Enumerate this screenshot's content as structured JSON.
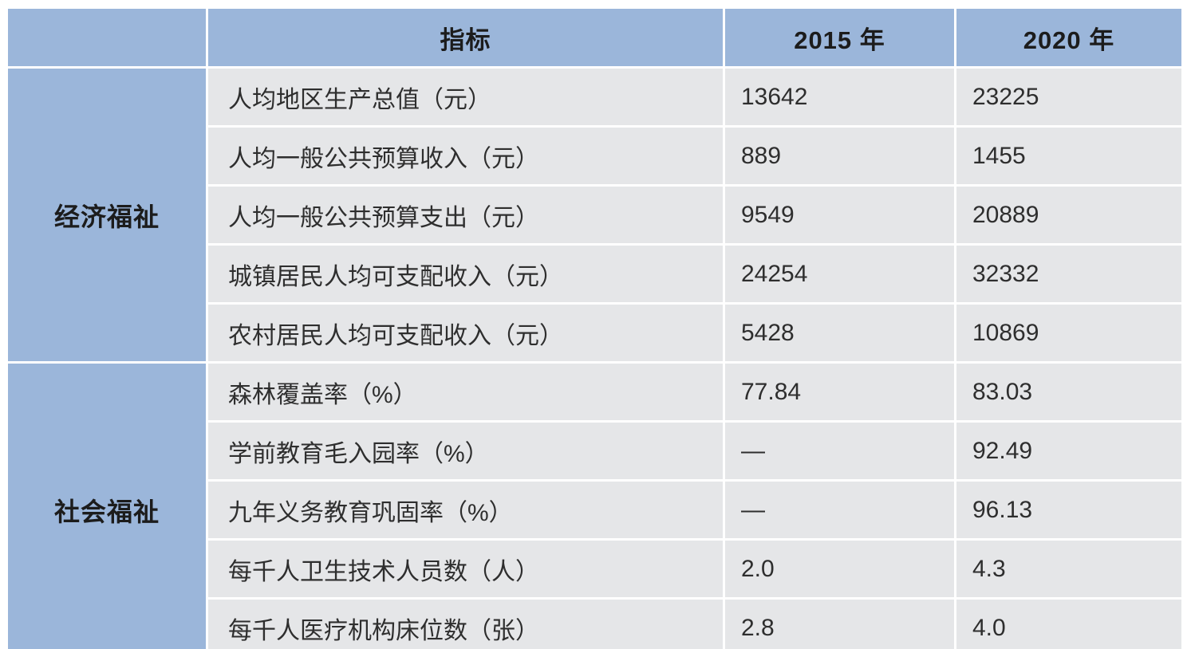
{
  "colors": {
    "header_bg": "#9BB6DA",
    "cell_bg": "#E5E6E8",
    "header_text": "#1c1c1c",
    "cell_text": "#2e2e2e",
    "page_bg": "#ffffff"
  },
  "table": {
    "header": {
      "group": "",
      "indicator": "指标",
      "y2015": "2015 年",
      "y2020": "2020 年"
    },
    "groups": [
      {
        "name": "经济福祉",
        "rows": [
          {
            "label": "人均地区生产总值（元）",
            "v2015": "13642",
            "v2020": "23225"
          },
          {
            "label": "人均一般公共预算收入（元）",
            "v2015": "889",
            "v2020": "1455"
          },
          {
            "label": "人均一般公共预算支出（元）",
            "v2015": "9549",
            "v2020": "20889"
          },
          {
            "label": "城镇居民人均可支配收入（元）",
            "v2015": "24254",
            "v2020": "32332"
          },
          {
            "label": "农村居民人均可支配收入（元）",
            "v2015": "5428",
            "v2020": "10869"
          }
        ]
      },
      {
        "name": "社会福祉",
        "rows": [
          {
            "label": "森林覆盖率（%）",
            "v2015": "77.84",
            "v2020": "83.03"
          },
          {
            "label": "学前教育毛入园率（%）",
            "v2015": "—",
            "v2020": "92.49"
          },
          {
            "label": "九年义务教育巩固率（%）",
            "v2015": "—",
            "v2020": "96.13"
          },
          {
            "label": "每千人卫生技术人员数（人）",
            "v2015": "2.0",
            "v2020": "4.3"
          },
          {
            "label": "每千人医疗机构床位数（张）",
            "v2015": "2.8",
            "v2020": "4.0"
          }
        ]
      }
    ]
  },
  "chart_data": {
    "type": "table",
    "title": "",
    "columns": [
      "",
      "指标",
      "2015 年",
      "2020 年"
    ],
    "row_groups": [
      {
        "group": "经济福祉",
        "rows": [
          [
            "人均地区生产总值（元）",
            "13642",
            "23225"
          ],
          [
            "人均一般公共预算收入（元）",
            "889",
            "1455"
          ],
          [
            "人均一般公共预算支出（元）",
            "9549",
            "20889"
          ],
          [
            "城镇居民人均可支配收入（元）",
            "24254",
            "32332"
          ],
          [
            "农村居民人均可支配收入（元）",
            "5428",
            "10869"
          ]
        ]
      },
      {
        "group": "社会福祉",
        "rows": [
          [
            "森林覆盖率（%）",
            "77.84",
            "83.03"
          ],
          [
            "学前教育毛入园率（%）",
            "—",
            "92.49"
          ],
          [
            "九年义务教育巩固率（%）",
            "—",
            "96.13"
          ],
          [
            "每千人卫生技术人员数（人）",
            "2.0",
            "4.3"
          ],
          [
            "每千人医疗机构床位数（张）",
            "2.8",
            "4.0"
          ]
        ]
      }
    ],
    "layout": {
      "header_fill": "#9BB6DA",
      "body_fill": "#E5E6E8",
      "separator": "white gaps between cells",
      "group_column_rowspan": 5
    }
  }
}
